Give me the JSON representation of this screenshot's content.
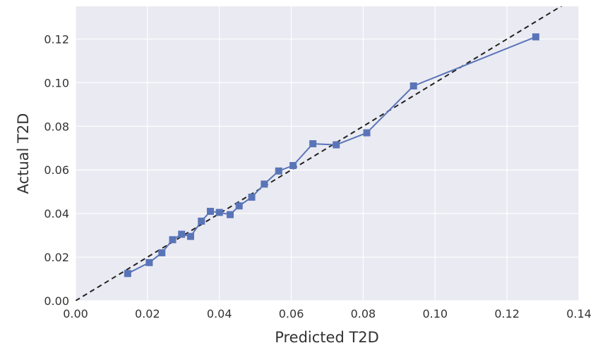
{
  "chart_data": {
    "type": "line",
    "title": "",
    "xlabel": "Predicted T2D",
    "ylabel": "Actual T2D",
    "xlim": [
      0.0,
      0.14
    ],
    "ylim": [
      0.0,
      0.135
    ],
    "xticks": [
      "0.00",
      "0.02",
      "0.04",
      "0.06",
      "0.08",
      "0.10",
      "0.12",
      "0.14"
    ],
    "yticks": [
      "0.00",
      "0.02",
      "0.04",
      "0.06",
      "0.08",
      "0.10",
      "0.12"
    ],
    "grid": true,
    "background_color": "#eaeaf2",
    "series": [
      {
        "color": "#5975b8",
        "marker": "square",
        "x": [
          0.0145,
          0.0205,
          0.024,
          0.027,
          0.0295,
          0.032,
          0.035,
          0.0375,
          0.04,
          0.043,
          0.0455,
          0.049,
          0.0525,
          0.0565,
          0.0605,
          0.066,
          0.0725,
          0.081,
          0.094,
          0.128
        ],
        "y": [
          0.0125,
          0.0175,
          0.022,
          0.028,
          0.0305,
          0.0295,
          0.0365,
          0.041,
          0.0405,
          0.0395,
          0.0435,
          0.0475,
          0.0535,
          0.0595,
          0.062,
          0.072,
          0.0715,
          0.077,
          0.0985,
          0.121
        ]
      }
    ],
    "reference_line": {
      "style": "dashed",
      "color": "#222222",
      "x": [
        0.0,
        0.14
      ],
      "y": [
        0.0,
        0.14
      ]
    }
  }
}
